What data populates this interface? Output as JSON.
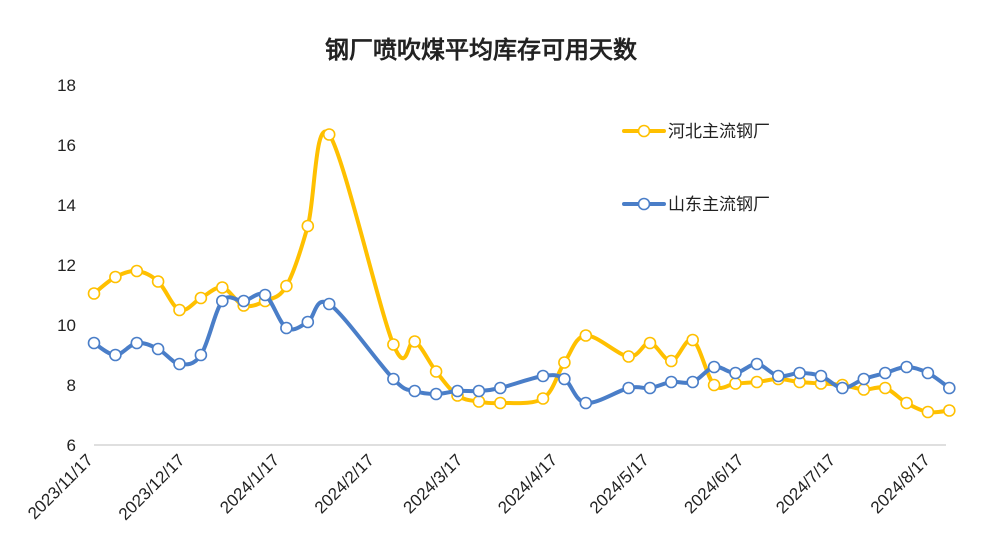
{
  "chart_data": {
    "type": "line",
    "title": "钢厂喷吹煤平均库存可用天数",
    "xlabel": "",
    "ylabel": "",
    "ylim": [
      6,
      18
    ],
    "yticks": [
      "6",
      "8",
      "10",
      "12",
      "14",
      "16",
      "18"
    ],
    "xticks": [
      "2023/11/17",
      "2023/12/17",
      "2024/1/17",
      "2024/2/17",
      "2024/3/17",
      "2024/4/17",
      "2024/5/17",
      "2024/6/17",
      "2024/7/17",
      "2024/8/17"
    ],
    "grid": false,
    "legend": "right",
    "series": [
      {
        "name": "河北主流钢厂",
        "color": "#FFC000",
        "x": [
          "2023/11/17",
          "2023/11/24",
          "2023/12/1",
          "2023/12/8",
          "2023/12/15",
          "2023/12/22",
          "2023/12/29",
          "2024/1/5",
          "2024/1/12",
          "2024/1/19",
          "2024/1/26",
          "2024/2/2",
          "2024/2/23",
          "2024/3/1",
          "2024/3/8",
          "2024/3/15",
          "2024/3/22",
          "2024/3/29",
          "2024/4/12",
          "2024/4/19",
          "2024/4/26",
          "2024/5/10",
          "2024/5/17",
          "2024/5/24",
          "2024/5/31",
          "2024/6/7",
          "2024/6/14",
          "2024/6/21",
          "2024/6/28",
          "2024/7/5",
          "2024/7/12",
          "2024/7/19",
          "2024/7/26",
          "2024/8/2",
          "2024/8/9",
          "2024/8/16",
          "2024/8/23"
        ],
        "values": [
          11.05,
          11.6,
          11.8,
          11.45,
          10.5,
          10.9,
          11.25,
          10.65,
          10.8,
          11.3,
          13.3,
          16.35,
          9.35,
          9.45,
          8.45,
          7.65,
          7.45,
          7.4,
          7.55,
          8.75,
          9.65,
          8.95,
          9.4,
          8.8,
          9.5,
          8.0,
          8.05,
          8.1,
          8.2,
          8.1,
          8.05,
          8.0,
          7.85,
          7.9,
          7.4,
          7.1,
          7.15
        ]
      },
      {
        "name": "山东主流钢厂",
        "color": "#4A7EC8",
        "x": [
          "2023/11/17",
          "2023/11/24",
          "2023/12/1",
          "2023/12/8",
          "2023/12/15",
          "2023/12/22",
          "2023/12/29",
          "2024/1/5",
          "2024/1/12",
          "2024/1/19",
          "2024/1/26",
          "2024/2/2",
          "2024/2/23",
          "2024/3/1",
          "2024/3/8",
          "2024/3/15",
          "2024/3/22",
          "2024/3/29",
          "2024/4/12",
          "2024/4/19",
          "2024/4/26",
          "2024/5/10",
          "2024/5/17",
          "2024/5/24",
          "2024/5/31",
          "2024/6/7",
          "2024/6/14",
          "2024/6/21",
          "2024/6/28",
          "2024/7/5",
          "2024/7/12",
          "2024/7/19",
          "2024/7/26",
          "2024/8/2",
          "2024/8/9",
          "2024/8/16",
          "2024/8/23"
        ],
        "values": [
          9.4,
          9.0,
          9.4,
          9.2,
          8.7,
          9.0,
          10.8,
          10.8,
          11.0,
          9.9,
          10.1,
          10.7,
          8.2,
          7.8,
          7.7,
          7.8,
          7.8,
          7.9,
          8.3,
          8.2,
          7.4,
          7.9,
          7.9,
          8.1,
          8.1,
          8.6,
          8.4,
          8.7,
          8.3,
          8.4,
          8.3,
          7.9,
          8.2,
          8.4,
          8.6,
          8.4,
          7.9
        ]
      }
    ]
  }
}
